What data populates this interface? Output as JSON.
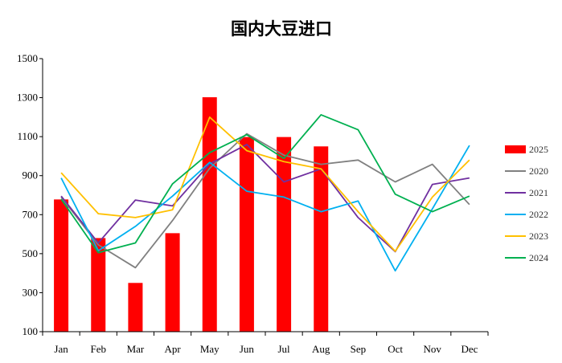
{
  "chart_data": {
    "type": "bar+line",
    "title": "国内大豆进口",
    "categories": [
      "Jan",
      "Feb",
      "Mar",
      "Apr",
      "May",
      "Jun",
      "Jul",
      "Aug",
      "Sep",
      "Oct",
      "Nov",
      "Dec"
    ],
    "ylim": [
      100,
      1500
    ],
    "yticks": [
      100,
      300,
      500,
      700,
      900,
      1100,
      1300,
      1500
    ],
    "grid": false,
    "legend": "right",
    "bar_series": {
      "name": "2025",
      "color": "#ff0000",
      "values": [
        778,
        580,
        350,
        605,
        1302,
        1098,
        1098,
        1050
      ]
    },
    "series": [
      {
        "name": "2020",
        "color": "#808080",
        "values": [
          790,
          545,
          428,
          670,
          938,
          1115,
          1005,
          958,
          980,
          868,
          958,
          752
        ]
      },
      {
        "name": "2021",
        "color": "#7030a0",
        "values": [
          795,
          555,
          775,
          745,
          960,
          1060,
          868,
          935,
          685,
          510,
          855,
          888
        ]
      },
      {
        "name": "2022",
        "color": "#00b0f0",
        "values": [
          888,
          515,
          640,
          795,
          968,
          820,
          790,
          715,
          770,
          412,
          730,
          1055
        ]
      },
      {
        "name": "2023",
        "color": "#ffc000",
        "values": [
          915,
          705,
          685,
          725,
          1200,
          1028,
          972,
          935,
          715,
          512,
          790,
          980
        ]
      },
      {
        "name": "2024",
        "color": "#00b050",
        "values": [
          780,
          505,
          555,
          858,
          1018,
          1110,
          988,
          1212,
          1135,
          805,
          715,
          795
        ]
      }
    ]
  }
}
